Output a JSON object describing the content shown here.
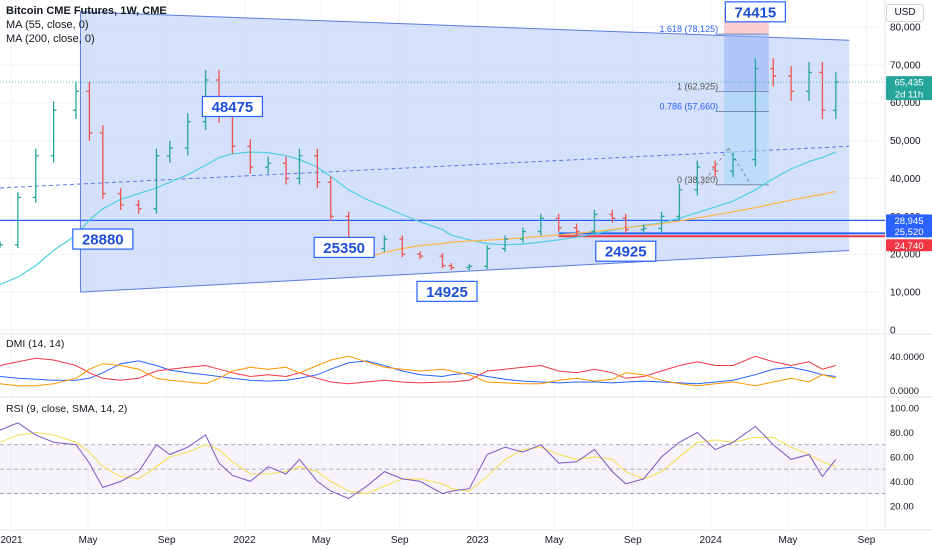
{
  "header": {
    "title": "Bitcoin CME Futures, 1W, CME",
    "ma_lines": [
      "MA (55, close, 0)",
      "MA (200, close, 0)"
    ],
    "currency": "USD"
  },
  "panes": {
    "dmi_label": "DMI (14, 14)",
    "rsi_label": "RSI (9, close, SMA, 14, 2)"
  },
  "price_badges": [
    {
      "value": "65,435",
      "sub": "2d 11h",
      "color": "#26a69a"
    },
    {
      "value": "28,945",
      "color": "#2962ff"
    },
    {
      "value": "25,520",
      "color": "#2962ff"
    },
    {
      "value": "24,740",
      "color": "#f23645"
    }
  ],
  "annotations": [
    {
      "text": "74415",
      "date": "2024-03-11",
      "price": 84000
    },
    {
      "text": "48475",
      "date": "2021-12-13",
      "price": 59000
    },
    {
      "text": "28880",
      "date": "2021-05-24",
      "price": 24000
    },
    {
      "text": "25350",
      "date": "2022-06-06",
      "price": 21800
    },
    {
      "text": "24925",
      "date": "2023-08-21",
      "price": 20800
    },
    {
      "text": "14925",
      "date": "2022-11-14",
      "price": 10200
    }
  ],
  "fib_labels": [
    {
      "text": "1.618 (78,125)",
      "price": 78125
    },
    {
      "text": "1 (62,925)",
      "price": 62925
    },
    {
      "text": "0.786 (57,660)",
      "price": 57660
    },
    {
      "text": "0 (38,320)",
      "price": 38320
    }
  ],
  "chart_data": {
    "type": "line",
    "title": "Bitcoin CME Futures, 1W, CME",
    "x": [
      "2020-12-14",
      "2021-01-11",
      "2021-02-08",
      "2021-03-08",
      "2021-04-12",
      "2021-05-03",
      "2021-05-24",
      "2021-06-21",
      "2021-07-19",
      "2021-08-16",
      "2021-09-06",
      "2021-10-04",
      "2021-11-01",
      "2021-11-22",
      "2021-12-13",
      "2022-01-10",
      "2022-02-07",
      "2022-03-07",
      "2022-03-28",
      "2022-04-25",
      "2022-05-16",
      "2022-06-13",
      "2022-07-11",
      "2022-08-08",
      "2022-09-05",
      "2022-10-03",
      "2022-11-07",
      "2022-11-21",
      "2022-12-19",
      "2023-01-16",
      "2023-02-13",
      "2023-03-13",
      "2023-04-10",
      "2023-05-08",
      "2023-06-05",
      "2023-07-03",
      "2023-07-31",
      "2023-08-21",
      "2023-09-18",
      "2023-10-16",
      "2023-11-13",
      "2023-12-11",
      "2024-01-08",
      "2024-02-05",
      "2024-03-11",
      "2024-04-08",
      "2024-05-06",
      "2024-06-03",
      "2024-06-24",
      "2024-07-15"
    ],
    "price": [
      22500,
      35000,
      46000,
      58000,
      63000,
      52000,
      36000,
      33000,
      32000,
      46000,
      48000,
      55000,
      66000,
      57000,
      48500,
      43000,
      44000,
      40000,
      46000,
      39000,
      30000,
      22000,
      21500,
      24000,
      20000,
      19500,
      17000,
      16500,
      16800,
      21500,
      24000,
      26000,
      29500,
      27000,
      26000,
      30500,
      29500,
      26500,
      26800,
      30000,
      37000,
      43000,
      42000,
      45000,
      69000,
      67000,
      63000,
      68000,
      58000,
      65435
    ],
    "ma55": [
      12000,
      14000,
      17000,
      21000,
      25000,
      29000,
      32000,
      34500,
      36000,
      37500,
      39000,
      41000,
      43500,
      45500,
      46500,
      47000,
      46800,
      46000,
      45000,
      43000,
      40500,
      37000,
      34500,
      32500,
      30500,
      28500,
      26500,
      25000,
      23800,
      22800,
      22500,
      22700,
      23200,
      23800,
      24500,
      25400,
      26300,
      27000,
      27600,
      28300,
      29500,
      31000,
      32500,
      34000,
      37000,
      40000,
      42500,
      44500,
      45500,
      47000
    ],
    "ma200": [
      null,
      null,
      null,
      null,
      null,
      null,
      null,
      null,
      null,
      null,
      null,
      null,
      null,
      null,
      null,
      null,
      null,
      null,
      null,
      null,
      null,
      null,
      19000,
      20500,
      21500,
      22300,
      22800,
      23200,
      23500,
      23700,
      24000,
      24300,
      24700,
      25100,
      25500,
      26000,
      26500,
      27000,
      27500,
      28100,
      28800,
      29600,
      30400,
      31200,
      32300,
      33300,
      34300,
      35200,
      35800,
      36600
    ],
    "dmi_adx": [
      18,
      16,
      15,
      14,
      14,
      16,
      22,
      32,
      35,
      30,
      25,
      22,
      20,
      18,
      16,
      14,
      13,
      14,
      16,
      20,
      26,
      33,
      35,
      30,
      24,
      20,
      18,
      20,
      22,
      18,
      15,
      13,
      12,
      11,
      12,
      12,
      11,
      12,
      13,
      12,
      11,
      10,
      12,
      14,
      20,
      26,
      28,
      24,
      20,
      18
    ],
    "dmi_plus": [
      30,
      34,
      38,
      36,
      30,
      22,
      16,
      14,
      16,
      24,
      26,
      28,
      30,
      26,
      22,
      18,
      20,
      18,
      22,
      16,
      12,
      10,
      12,
      14,
      12,
      11,
      12,
      12,
      14,
      24,
      26,
      28,
      30,
      24,
      22,
      26,
      22,
      16,
      18,
      24,
      30,
      34,
      30,
      30,
      40,
      34,
      30,
      34,
      26,
      30
    ],
    "dmi_minus": [
      10,
      8,
      8,
      10,
      16,
      26,
      32,
      30,
      26,
      16,
      14,
      12,
      10,
      16,
      24,
      28,
      26,
      28,
      22,
      30,
      36,
      40,
      34,
      28,
      26,
      24,
      26,
      24,
      20,
      12,
      11,
      10,
      10,
      14,
      16,
      13,
      15,
      22,
      20,
      14,
      10,
      8,
      10,
      12,
      8,
      12,
      16,
      12,
      20,
      16
    ],
    "rsi": [
      82,
      88,
      78,
      72,
      70,
      55,
      35,
      40,
      48,
      70,
      62,
      68,
      78,
      55,
      45,
      40,
      52,
      46,
      58,
      40,
      32,
      26,
      36,
      48,
      42,
      40,
      30,
      32,
      34,
      62,
      68,
      64,
      70,
      55,
      56,
      66,
      48,
      38,
      42,
      60,
      72,
      80,
      66,
      72,
      85,
      70,
      58,
      62,
      44,
      58
    ],
    "rsi_sma": [
      72,
      78,
      80,
      78,
      72,
      64,
      52,
      44,
      42,
      52,
      60,
      64,
      70,
      66,
      56,
      46,
      46,
      48,
      52,
      48,
      40,
      32,
      30,
      36,
      42,
      42,
      38,
      34,
      32,
      44,
      58,
      66,
      68,
      62,
      58,
      60,
      58,
      48,
      42,
      48,
      60,
      72,
      74,
      72,
      76,
      76,
      68,
      62,
      56,
      52
    ],
    "ylim": [
      0,
      85000
    ],
    "yticks": [
      0,
      10000,
      20000,
      30000,
      40000,
      50000,
      60000,
      70000,
      80000
    ],
    "ytick_labels": [
      "0",
      "10,000",
      "20,000",
      "30,000",
      "40,000",
      "50,000",
      "60,000",
      "70,000",
      "80,000"
    ],
    "dmi_ticks": [
      "0.0000",
      "40.0000"
    ],
    "rsi_ticks": [
      "20.00",
      "40.00",
      "60.00",
      "80.00",
      "100.00"
    ],
    "x_ticks": [
      {
        "label": "2021",
        "date": "2021-01-01"
      },
      {
        "label": "May",
        "date": "2021-05-01"
      },
      {
        "label": "Sep",
        "date": "2021-09-01"
      },
      {
        "label": "2022",
        "date": "2022-01-01"
      },
      {
        "label": "May",
        "date": "2022-05-01"
      },
      {
        "label": "Sep",
        "date": "2022-09-01"
      },
      {
        "label": "2023",
        "date": "2023-01-01"
      },
      {
        "label": "May",
        "date": "2023-05-01"
      },
      {
        "label": "Sep",
        "date": "2023-09-01"
      },
      {
        "label": "2024",
        "date": "2024-01-01"
      },
      {
        "label": "May",
        "date": "2024-05-01"
      },
      {
        "label": "Sep",
        "date": "2024-09-01"
      }
    ],
    "horizontal_levels": [
      {
        "price": 28945,
        "color": "#2962ff"
      },
      {
        "price": 25520,
        "color": "#2962ff"
      },
      {
        "price": 24740,
        "color": "#f23645"
      }
    ],
    "channel": {
      "start_date": "2021-04-19",
      "end_date": "2024-08-05",
      "upper": [
        84000,
        76500
      ],
      "mid": [
        38000,
        48500
      ],
      "lower": [
        10000,
        21000
      ]
    },
    "colors": {
      "up": "#26a69a",
      "down": "#ef5350",
      "ma55": "#4dd0e1",
      "ma200": "#ffb74d",
      "channel_fill": "#c7d6fa",
      "channel_line": "#5b7be0",
      "dmi_adx": "#2962ff",
      "dmi_plus": "#f23645",
      "dmi_minus": "#ff9800",
      "rsi": "#7e57c2",
      "rsi_sma": "#f5e05a"
    }
  }
}
